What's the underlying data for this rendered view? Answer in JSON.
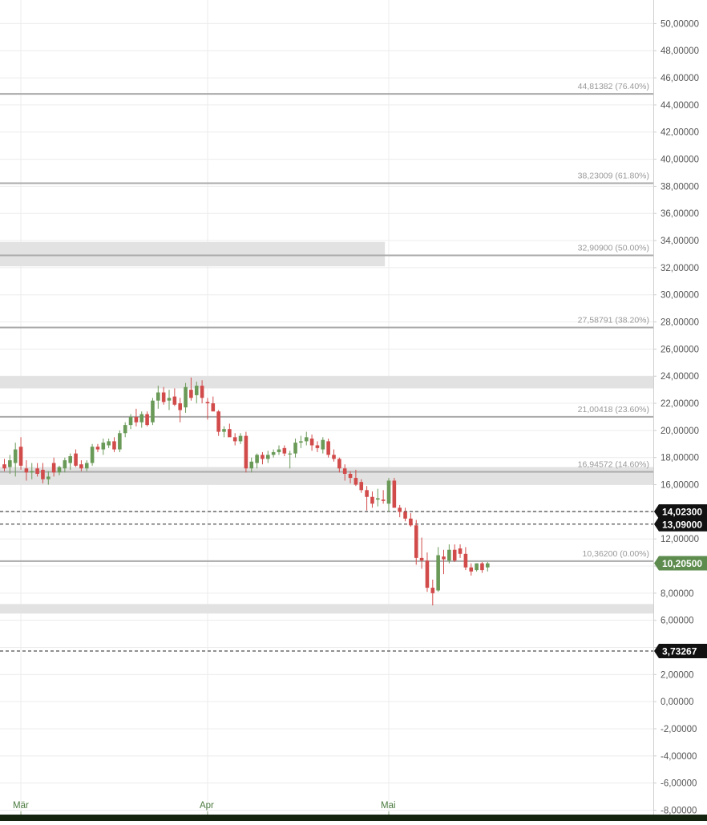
{
  "chart_data": {
    "type": "candlestick",
    "title": "",
    "xlabel": "",
    "ylabel": "",
    "ylim": [
      -8,
      51
    ],
    "grid": true,
    "y_ticks": [
      "-8,00000",
      "-6,00000",
      "-4,00000",
      "-2,00000",
      "0,00000",
      "2,00000",
      "4,00000",
      "6,00000",
      "8,00000",
      "10,00000",
      "12,00000",
      "14,00000",
      "16,00000",
      "18,00000",
      "20,00000",
      "22,00000",
      "24,00000",
      "26,00000",
      "28,00000",
      "30,00000",
      "32,00000",
      "34,00000",
      "36,00000",
      "38,00000",
      "40,00000",
      "42,00000",
      "44,00000",
      "46,00000",
      "48,00000",
      "50,00000"
    ],
    "x_ticks": [
      {
        "label": "Mär",
        "index": 3
      },
      {
        "label": "Apr",
        "index": 37
      },
      {
        "label": "Mai",
        "index": 70
      }
    ],
    "fib_levels": [
      {
        "value": 44.81382,
        "label": "44,81382 (76.40%)"
      },
      {
        "value": 38.23009,
        "label": "38,23009 (61.80%)"
      },
      {
        "value": 32.909,
        "label": "32,90900 (50.00%)"
      },
      {
        "value": 27.58791,
        "label": "27,58791 (38.20%)"
      },
      {
        "value": 21.00418,
        "label": "21,00418 (23.60%)"
      },
      {
        "value": 16.94572,
        "label": "16,94572 (14.60%)"
      },
      {
        "value": 10.362,
        "label": "10,36200 (0.00%)"
      }
    ],
    "zones": [
      {
        "from": 32.1,
        "to": 33.9,
        "end_index": 69
      },
      {
        "from": 23.1,
        "to": 24.0
      },
      {
        "from": 16.0,
        "to": 17.3
      },
      {
        "from": 6.5,
        "to": 7.2
      }
    ],
    "dashed_levels": [
      {
        "value": 14.023,
        "label": "14,02300",
        "color": "#111111"
      },
      {
        "value": 13.09,
        "label": "13,09000",
        "color": "#111111"
      },
      {
        "value": 3.73267,
        "label": "3,73267",
        "color": "#111111"
      }
    ],
    "last_price": {
      "value": 10.205,
      "label": "10,20500",
      "color": "#5e8c4f"
    },
    "colors": {
      "up": "#6a9a58",
      "down": "#d24b4b",
      "grid": "#ececec",
      "fib": "#aaaaaa",
      "zone": "#e0e0e0"
    },
    "candles": [
      {
        "o": 17.5,
        "h": 17.9,
        "l": 17.0,
        "c": 17.2
      },
      {
        "o": 17.3,
        "h": 18.2,
        "l": 16.8,
        "c": 17.8
      },
      {
        "o": 17.6,
        "h": 19.1,
        "l": 16.6,
        "c": 18.6
      },
      {
        "o": 18.8,
        "h": 19.5,
        "l": 17.1,
        "c": 17.4
      },
      {
        "o": 17.2,
        "h": 17.8,
        "l": 16.3,
        "c": 16.9
      },
      {
        "o": 16.9,
        "h": 17.6,
        "l": 16.4,
        "c": 17.0
      },
      {
        "o": 17.2,
        "h": 17.6,
        "l": 16.6,
        "c": 16.8
      },
      {
        "o": 17.1,
        "h": 17.6,
        "l": 16.1,
        "c": 16.4
      },
      {
        "o": 16.4,
        "h": 17.0,
        "l": 16.0,
        "c": 16.6
      },
      {
        "o": 17.6,
        "h": 18.0,
        "l": 16.6,
        "c": 16.9
      },
      {
        "o": 16.9,
        "h": 17.4,
        "l": 16.7,
        "c": 17.3
      },
      {
        "o": 17.2,
        "h": 18.0,
        "l": 16.9,
        "c": 17.8
      },
      {
        "o": 17.6,
        "h": 18.3,
        "l": 17.1,
        "c": 18.1
      },
      {
        "o": 18.3,
        "h": 18.6,
        "l": 17.3,
        "c": 17.4
      },
      {
        "o": 17.5,
        "h": 17.8,
        "l": 17.0,
        "c": 17.2
      },
      {
        "o": 17.2,
        "h": 17.8,
        "l": 17.0,
        "c": 17.6
      },
      {
        "o": 17.6,
        "h": 19.0,
        "l": 17.4,
        "c": 18.8
      },
      {
        "o": 18.8,
        "h": 19.0,
        "l": 18.4,
        "c": 18.6
      },
      {
        "o": 18.6,
        "h": 19.4,
        "l": 18.2,
        "c": 19.1
      },
      {
        "o": 18.9,
        "h": 19.4,
        "l": 18.7,
        "c": 19.2
      },
      {
        "o": 19.2,
        "h": 19.5,
        "l": 18.4,
        "c": 18.6
      },
      {
        "o": 18.6,
        "h": 20.0,
        "l": 18.4,
        "c": 19.8
      },
      {
        "o": 19.8,
        "h": 20.6,
        "l": 19.5,
        "c": 20.4
      },
      {
        "o": 20.4,
        "h": 21.2,
        "l": 20.1,
        "c": 21.0
      },
      {
        "o": 21.0,
        "h": 21.6,
        "l": 20.3,
        "c": 20.6
      },
      {
        "o": 20.6,
        "h": 21.4,
        "l": 20.2,
        "c": 21.2
      },
      {
        "o": 21.2,
        "h": 21.4,
        "l": 20.3,
        "c": 20.4
      },
      {
        "o": 20.6,
        "h": 22.4,
        "l": 20.4,
        "c": 22.2
      },
      {
        "o": 22.2,
        "h": 23.3,
        "l": 21.6,
        "c": 22.8
      },
      {
        "o": 22.8,
        "h": 23.2,
        "l": 21.9,
        "c": 22.1
      },
      {
        "o": 22.2,
        "h": 23.0,
        "l": 21.5,
        "c": 22.4
      },
      {
        "o": 22.5,
        "h": 23.1,
        "l": 21.8,
        "c": 21.9
      },
      {
        "o": 22.0,
        "h": 22.4,
        "l": 20.6,
        "c": 21.5
      },
      {
        "o": 21.7,
        "h": 23.5,
        "l": 21.3,
        "c": 23.2
      },
      {
        "o": 23.0,
        "h": 23.9,
        "l": 22.2,
        "c": 22.4
      },
      {
        "o": 22.6,
        "h": 23.6,
        "l": 22.0,
        "c": 23.3
      },
      {
        "o": 23.3,
        "h": 23.7,
        "l": 22.0,
        "c": 22.4
      },
      {
        "o": 22.1,
        "h": 22.4,
        "l": 20.8,
        "c": 22.0
      },
      {
        "o": 22.0,
        "h": 22.5,
        "l": 21.5,
        "c": 21.4
      },
      {
        "o": 21.4,
        "h": 21.5,
        "l": 19.6,
        "c": 19.9
      },
      {
        "o": 19.9,
        "h": 20.3,
        "l": 19.5,
        "c": 20.1
      },
      {
        "o": 20.1,
        "h": 20.5,
        "l": 19.7,
        "c": 19.5
      },
      {
        "o": 19.5,
        "h": 19.8,
        "l": 18.9,
        "c": 19.2
      },
      {
        "o": 19.2,
        "h": 19.8,
        "l": 19.0,
        "c": 19.6
      },
      {
        "o": 19.6,
        "h": 19.9,
        "l": 16.9,
        "c": 17.2
      },
      {
        "o": 17.2,
        "h": 18.0,
        "l": 16.9,
        "c": 17.7
      },
      {
        "o": 17.6,
        "h": 18.3,
        "l": 17.2,
        "c": 18.2
      },
      {
        "o": 18.2,
        "h": 18.4,
        "l": 17.5,
        "c": 17.9
      },
      {
        "o": 17.9,
        "h": 18.5,
        "l": 17.6,
        "c": 18.2
      },
      {
        "o": 18.2,
        "h": 18.6,
        "l": 18.0,
        "c": 18.4
      },
      {
        "o": 18.4,
        "h": 18.9,
        "l": 18.2,
        "c": 18.6
      },
      {
        "o": 18.7,
        "h": 18.9,
        "l": 18.1,
        "c": 18.3
      },
      {
        "o": 18.3,
        "h": 18.5,
        "l": 17.2,
        "c": 18.3
      },
      {
        "o": 18.3,
        "h": 19.4,
        "l": 18.0,
        "c": 19.1
      },
      {
        "o": 19.1,
        "h": 19.6,
        "l": 18.7,
        "c": 19.2
      },
      {
        "o": 19.2,
        "h": 19.9,
        "l": 18.9,
        "c": 19.5
      },
      {
        "o": 19.4,
        "h": 19.7,
        "l": 18.5,
        "c": 18.9
      },
      {
        "o": 18.9,
        "h": 19.2,
        "l": 18.4,
        "c": 18.7
      },
      {
        "o": 18.6,
        "h": 19.5,
        "l": 18.3,
        "c": 19.3
      },
      {
        "o": 19.2,
        "h": 19.4,
        "l": 18.0,
        "c": 18.2
      },
      {
        "o": 18.2,
        "h": 18.6,
        "l": 17.7,
        "c": 17.9
      },
      {
        "o": 17.9,
        "h": 18.0,
        "l": 16.9,
        "c": 17.2
      },
      {
        "o": 17.2,
        "h": 17.5,
        "l": 16.3,
        "c": 16.8
      },
      {
        "o": 16.8,
        "h": 17.0,
        "l": 16.1,
        "c": 16.5
      },
      {
        "o": 16.5,
        "h": 17.1,
        "l": 15.9,
        "c": 16.0
      },
      {
        "o": 16.2,
        "h": 16.4,
        "l": 15.4,
        "c": 15.6
      },
      {
        "o": 15.6,
        "h": 15.9,
        "l": 14.1,
        "c": 15.1
      },
      {
        "o": 15.1,
        "h": 15.5,
        "l": 14.3,
        "c": 14.6
      },
      {
        "o": 14.9,
        "h": 15.7,
        "l": 14.4,
        "c": 15.0
      },
      {
        "o": 14.9,
        "h": 15.6,
        "l": 14.6,
        "c": 14.8
      },
      {
        "o": 14.6,
        "h": 16.5,
        "l": 14.0,
        "c": 16.3
      },
      {
        "o": 16.3,
        "h": 16.5,
        "l": 14.3,
        "c": 14.3
      },
      {
        "o": 14.3,
        "h": 14.5,
        "l": 13.6,
        "c": 14.0
      },
      {
        "o": 14.0,
        "h": 14.3,
        "l": 13.3,
        "c": 13.5
      },
      {
        "o": 13.5,
        "h": 13.9,
        "l": 12.9,
        "c": 13.0
      },
      {
        "o": 13.0,
        "h": 13.4,
        "l": 10.1,
        "c": 10.6
      },
      {
        "o": 10.6,
        "h": 12.1,
        "l": 9.8,
        "c": 10.4
      },
      {
        "o": 10.4,
        "h": 11.0,
        "l": 8.1,
        "c": 8.4
      },
      {
        "o": 8.4,
        "h": 9.0,
        "l": 7.1,
        "c": 8.0
      },
      {
        "o": 8.2,
        "h": 11.4,
        "l": 8.1,
        "c": 10.8
      },
      {
        "o": 10.7,
        "h": 11.2,
        "l": 9.4,
        "c": 10.5
      },
      {
        "o": 10.4,
        "h": 11.6,
        "l": 10.2,
        "c": 11.2
      },
      {
        "o": 11.2,
        "h": 11.6,
        "l": 10.3,
        "c": 10.4
      },
      {
        "o": 11.3,
        "h": 11.6,
        "l": 10.6,
        "c": 10.9
      },
      {
        "o": 10.9,
        "h": 11.4,
        "l": 9.7,
        "c": 9.9
      },
      {
        "o": 9.9,
        "h": 10.2,
        "l": 9.3,
        "c": 9.6
      },
      {
        "o": 9.7,
        "h": 10.2,
        "l": 9.6,
        "c": 10.2
      },
      {
        "o": 10.2,
        "h": 10.3,
        "l": 9.5,
        "c": 9.7
      },
      {
        "o": 9.9,
        "h": 10.3,
        "l": 9.6,
        "c": 10.2
      }
    ]
  }
}
